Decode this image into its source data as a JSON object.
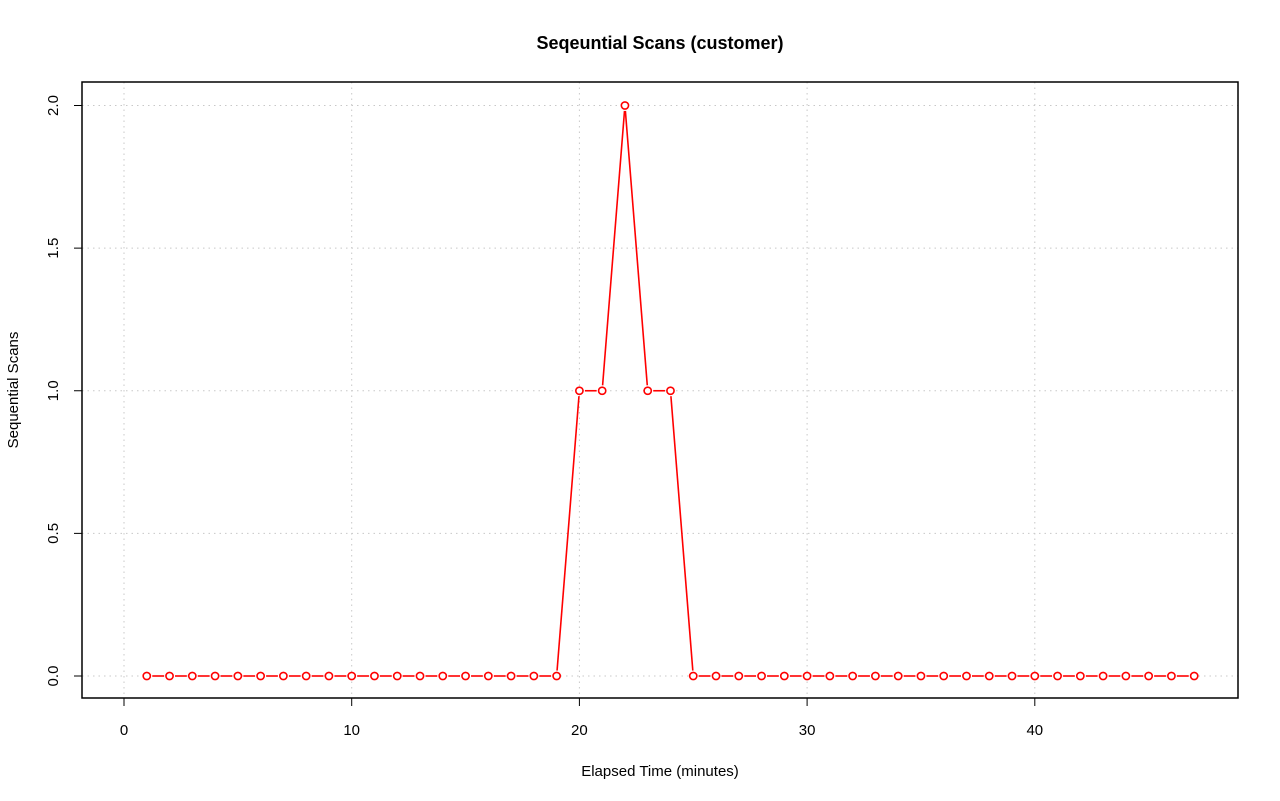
{
  "chart_data": {
    "type": "line",
    "title": "Seqeuntial Scans (customer)",
    "xlabel": "Elapsed Time (minutes)",
    "ylabel": "Sequential Scans",
    "xlim": [
      0,
      47
    ],
    "ylim": [
      0,
      2
    ],
    "x_ticks": [
      0,
      10,
      20,
      30,
      40
    ],
    "y_ticks": [
      0.0,
      0.5,
      1.0,
      1.5,
      2.0
    ],
    "x_tick_labels": [
      "0",
      "10",
      "20",
      "30",
      "40"
    ],
    "y_tick_labels": [
      "0.0",
      "0.5",
      "1.0",
      "1.5",
      "2.0"
    ],
    "grid": true,
    "series": [
      {
        "color": "#ff0000",
        "marker": "open-circle",
        "x": [
          1,
          2,
          3,
          4,
          5,
          6,
          7,
          8,
          9,
          10,
          11,
          12,
          13,
          14,
          15,
          16,
          17,
          18,
          19,
          20,
          21,
          22,
          23,
          24,
          25,
          26,
          27,
          28,
          29,
          30,
          31,
          32,
          33,
          34,
          35,
          36,
          37,
          38,
          39,
          40,
          41,
          42,
          43,
          44,
          45,
          46,
          47
        ],
        "values": [
          0,
          0,
          0,
          0,
          0,
          0,
          0,
          0,
          0,
          0,
          0,
          0,
          0,
          0,
          0,
          0,
          0,
          0,
          0,
          1,
          1,
          2,
          1,
          1,
          0,
          0,
          0,
          0,
          0,
          0,
          0,
          0,
          0,
          0,
          0,
          0,
          0,
          0,
          0,
          0,
          0,
          0,
          0,
          0,
          0,
          0,
          0
        ]
      }
    ]
  }
}
